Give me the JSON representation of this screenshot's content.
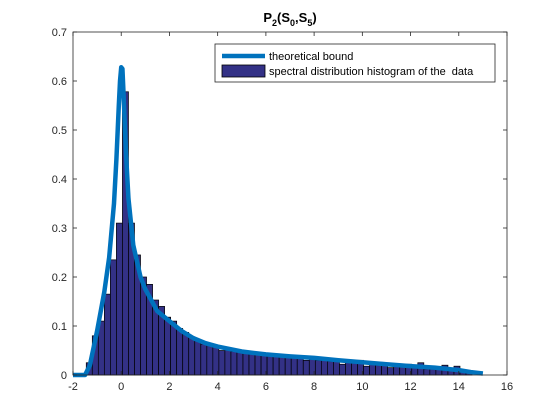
{
  "chart_data": {
    "type": "bar",
    "title": {
      "main": "P",
      "sub1": "2",
      "open": "(S",
      "sub2": "0",
      "mid": ",S",
      "sub3": "5",
      "close": ")"
    },
    "xlim": [
      -2,
      16
    ],
    "ylim": [
      0,
      0.7
    ],
    "x_ticks": [
      -2,
      0,
      2,
      4,
      6,
      8,
      10,
      12,
      14,
      16
    ],
    "y_ticks": [
      0,
      0.1,
      0.2,
      0.3,
      0.4,
      0.5,
      0.6,
      0.7
    ],
    "x_tick_labels": [
      "-2",
      "0",
      "2",
      "4",
      "6",
      "8",
      "10",
      "12",
      "14",
      "16"
    ],
    "y_tick_labels": [
      "0",
      "0.1",
      "0.2",
      "0.3",
      "0.4",
      "0.5",
      "0.6",
      "0.7"
    ],
    "grid": false,
    "legend_position": "top-right",
    "legend": [
      {
        "label": "theoretical bound",
        "kind": "line"
      },
      {
        "label": "spectral distribution histogram of the  data",
        "kind": "bar"
      }
    ],
    "colors": {
      "bound_line": "#0072BD",
      "bar_fill": "#333186",
      "bar_edge": "#000000"
    },
    "histogram": {
      "bin_start": -1.45,
      "bin_width": 0.25,
      "values": [
        0.025,
        0.08,
        0.11,
        0.165,
        0.235,
        0.31,
        0.578,
        0.31,
        0.245,
        0.2,
        0.185,
        0.153,
        0.14,
        0.118,
        0.11,
        0.095,
        0.087,
        0.078,
        0.07,
        0.063,
        0.06,
        0.057,
        0.05,
        0.051,
        0.048,
        0.047,
        0.045,
        0.043,
        0.042,
        0.04,
        0.04,
        0.042,
        0.04,
        0.039,
        0.035,
        0.035,
        0.03,
        0.032,
        0.03,
        0.03,
        0.028,
        0.028,
        0.022,
        0.028,
        0.025,
        0.03,
        0.018,
        0.025,
        0.02,
        0.024,
        0.015,
        0.018,
        0.02,
        0.022,
        0.015,
        0.025,
        0.012,
        0.012,
        0.016,
        0.02,
        0.01,
        0.018,
        0.01,
        0.008
      ]
    },
    "bound_curve": {
      "x": [
        -2,
        -1.5,
        -1.3,
        -1.0,
        -0.7,
        -0.5,
        -0.3,
        -0.2,
        -0.1,
        -0.05,
        0.0,
        0.05,
        0.1,
        0.2,
        0.3,
        0.5,
        0.8,
        1.0,
        1.5,
        2.0,
        2.5,
        3.0,
        3.5,
        4.0,
        5.0,
        6.0,
        7.0,
        8.0,
        9.0,
        10.0,
        11.0,
        12.0,
        13.0,
        14.0,
        14.5,
        15.0
      ],
      "y": [
        0.0,
        0.0,
        0.02,
        0.09,
        0.17,
        0.24,
        0.35,
        0.44,
        0.55,
        0.6,
        0.628,
        0.625,
        0.57,
        0.45,
        0.36,
        0.265,
        0.2,
        0.175,
        0.13,
        0.11,
        0.09,
        0.075,
        0.065,
        0.058,
        0.048,
        0.042,
        0.038,
        0.035,
        0.03,
        0.026,
        0.022,
        0.018,
        0.015,
        0.01,
        0.006,
        0.003
      ]
    }
  }
}
